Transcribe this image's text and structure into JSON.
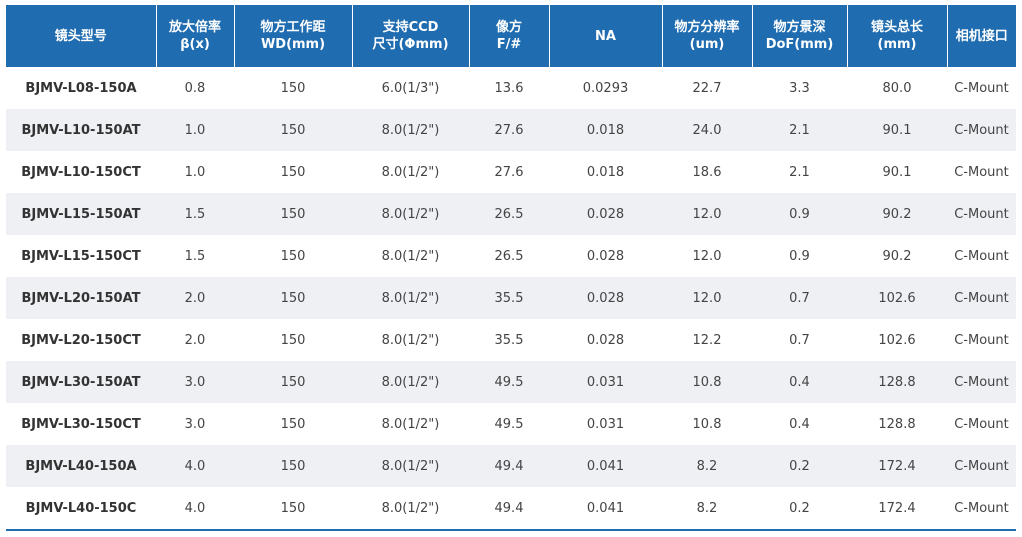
{
  "headers": [
    [
      "镜头型号"
    ],
    [
      "放大倍率",
      "β(x)"
    ],
    [
      "物方工作距",
      "WD(mm)"
    ],
    [
      "支持CCD",
      "尺寸(Φmm)"
    ],
    [
      "像方",
      "F/#"
    ],
    [
      "NA"
    ],
    [
      "物方分辨率",
      "(um)"
    ],
    [
      "物方景深",
      "DoF(mm)"
    ],
    [
      "镜头总长",
      "(mm)"
    ],
    [
      "相机接口"
    ]
  ],
  "rows": [
    [
      "BJMV-L08-150A",
      "0.8",
      "150",
      "6.0(1/3\")",
      "13.6",
      "0.0293",
      "22.7",
      "3.3",
      "80.0",
      "C-Mount"
    ],
    [
      "BJMV-L10-150AT",
      "1.0",
      "150",
      "8.0(1/2\")",
      "27.6",
      "0.018",
      "24.0",
      "2.1",
      "90.1",
      "C-Mount"
    ],
    [
      "BJMV-L10-150CT",
      "1.0",
      "150",
      "8.0(1/2\")",
      "27.6",
      "0.018",
      "18.6",
      "2.1",
      "90.1",
      "C-Mount"
    ],
    [
      "BJMV-L15-150AT",
      "1.5",
      "150",
      "8.0(1/2\")",
      "26.5",
      "0.028",
      "12.0",
      "0.9",
      "90.2",
      "C-Mount"
    ],
    [
      "BJMV-L15-150CT",
      "1.5",
      "150",
      "8.0(1/2\")",
      "26.5",
      "0.028",
      "12.0",
      "0.9",
      "90.2",
      "C-Mount"
    ],
    [
      "BJMV-L20-150AT",
      "2.0",
      "150",
      "8.0(1/2\")",
      "35.5",
      "0.028",
      "12.0",
      "0.7",
      "102.6",
      "C-Mount"
    ],
    [
      "BJMV-L20-150CT",
      "2.0",
      "150",
      "8.0(1/2\")",
      "35.5",
      "0.028",
      "12.2",
      "0.7",
      "102.6",
      "C-Mount"
    ],
    [
      "BJMV-L30-150AT",
      "3.0",
      "150",
      "8.0(1/2\")",
      "49.5",
      "0.031",
      "10.8",
      "0.4",
      "128.8",
      "C-Mount"
    ],
    [
      "BJMV-L30-150CT",
      "3.0",
      "150",
      "8.0(1/2\")",
      "49.5",
      "0.031",
      "10.8",
      "0.4",
      "128.8",
      "C-Mount"
    ],
    [
      "BJMV-L40-150A",
      "4.0",
      "150",
      "8.0(1/2\")",
      "49.4",
      "0.041",
      "8.2",
      "0.2",
      "172.4",
      "C-Mount"
    ],
    [
      "BJMV-L40-150C",
      "4.0",
      "150",
      "8.0(1/2\")",
      "49.4",
      "0.041",
      "8.2",
      "0.2",
      "172.4",
      "C-Mount"
    ]
  ],
  "colors": {
    "header_bg": "#1f6cb0",
    "stripe_bg": "#eef0f4"
  }
}
